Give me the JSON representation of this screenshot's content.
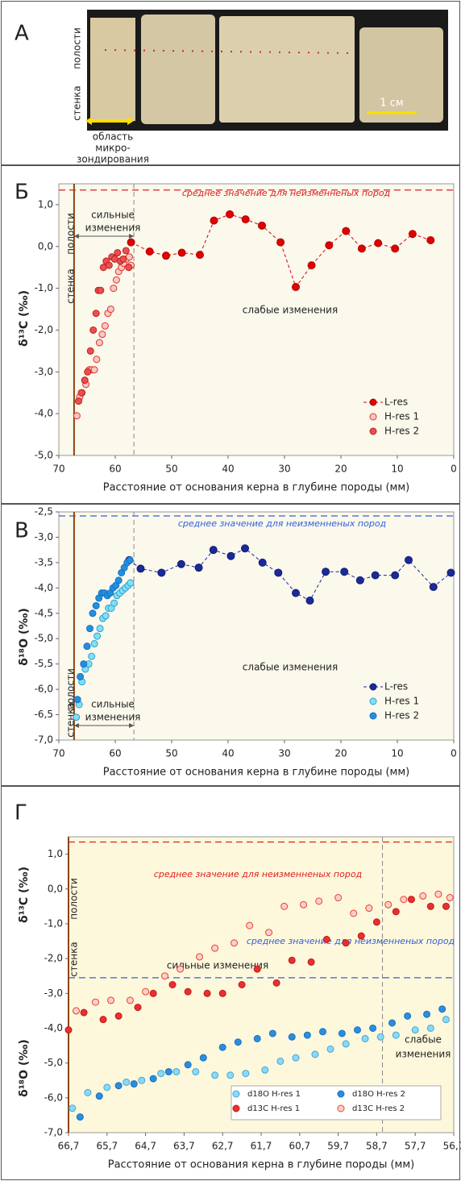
{
  "panel_a": {
    "label": "А",
    "cavity": "полости",
    "wall": "стенка",
    "zone": [
      "область",
      "микро-",
      "зондирования"
    ],
    "scale": "1 см"
  },
  "chart_data": [
    {
      "type": "scatter",
      "panel_label": "Б",
      "ylabel": [
        "δ¹³C (‰)"
      ],
      "xlabel": "Расстояние от основания керна в глубине породы (мм)",
      "xlim": [
        70,
        0
      ],
      "xticks": [
        70,
        60,
        50,
        40,
        30,
        20,
        10,
        0
      ],
      "ylim": [
        -5,
        1.5
      ],
      "yticks": [
        {
          "value": -5,
          "label": "-5,0"
        },
        {
          "value": -4,
          "label": "-4,0"
        },
        {
          "value": -3,
          "label": "-3,0"
        },
        {
          "value": -2,
          "label": "-2,0"
        },
        {
          "value": -1,
          "label": "-1,0"
        },
        {
          "value": 0,
          "label": "0,0"
        },
        {
          "value": 1,
          "label": "1,0"
        }
      ],
      "hlines": [
        {
          "value": 1.35,
          "color": "#e02020"
        }
      ],
      "vlines": [
        {
          "value": 56.7,
          "color": "#888888"
        },
        {
          "value": 67.3,
          "color": "#8b4513"
        }
      ],
      "annotations": [
        "среднее значение для неизменненых пород",
        "сильные",
        "изменения",
        "слабые изменения",
        "полости",
        "стенка"
      ],
      "legend": "lower right",
      "legend_columns": 1,
      "background": "#fbf8ec",
      "series": [
        {
          "name": "L-res",
          "color": "#e00000",
          "edgecolor": "#b00000",
          "line": "dashed",
          "x": [
            57.2,
            53.9,
            51,
            48.2,
            45,
            42.5,
            39.7,
            36.9,
            34,
            30.7,
            28,
            25.2,
            22.1,
            19.1,
            16.3,
            13.4,
            10.4,
            7.3,
            4.1
          ],
          "values": [
            0.1,
            -0.12,
            -0.22,
            -0.15,
            -0.2,
            0.62,
            0.77,
            0.65,
            0.5,
            0.1,
            -0.97,
            -0.45,
            0.03,
            0.37,
            -0.05,
            0.08,
            -0.05,
            0.3,
            0.15
          ]
        },
        {
          "name": "H-res 1",
          "color": "#f8c8c0",
          "edgecolor": "#e03030",
          "x": [
            66.8,
            66.3,
            65.9,
            65.2,
            64.6,
            64.2,
            63.7,
            63.3,
            62.8,
            62.3,
            61.8,
            61.3,
            60.8,
            60.3,
            59.8,
            59.4,
            58.9,
            58.5,
            58,
            57.5,
            57.2
          ],
          "values": [
            -4.05,
            -3.6,
            -3.5,
            -3.3,
            -2.95,
            -2.95,
            -2.95,
            -2.7,
            -2.3,
            -2.1,
            -1.9,
            -1.6,
            -1.5,
            -1,
            -0.8,
            -0.6,
            -0.5,
            -0.4,
            -0.3,
            -0.25,
            -0.45
          ]
        },
        {
          "name": "H-res 2",
          "color": "#e85050",
          "edgecolor": "#c02020",
          "x": [
            66.5,
            66,
            65.4,
            64.9,
            64.4,
            63.9,
            63.4,
            63,
            62.6,
            62.1,
            61.6,
            61.1,
            60.6,
            60.1,
            59.6,
            59.1,
            58.6,
            58.1,
            57.6
          ],
          "values": [
            -3.7,
            -3.5,
            -3.2,
            -3,
            -2.5,
            -2,
            -1.6,
            -1.05,
            -1.05,
            -0.5,
            -0.35,
            -0.45,
            -0.25,
            -0.3,
            -0.15,
            -0.35,
            -0.3,
            -0.1,
            -0.5
          ]
        }
      ]
    },
    {
      "type": "scatter",
      "panel_label": "В",
      "ylabel": [
        "δ¹⁸O (‰)"
      ],
      "xlabel": "Расстояние от основания керна в глубине породы (мм)",
      "xlim": [
        70,
        0
      ],
      "xticks": [
        70,
        60,
        50,
        40,
        30,
        20,
        10,
        0
      ],
      "ylim": [
        -7,
        -2.5
      ],
      "yticks": [
        {
          "value": -7,
          "label": "-7,0"
        },
        {
          "value": -6.5,
          "label": "-6,5"
        },
        {
          "value": -6,
          "label": "-6,0"
        },
        {
          "value": -5.5,
          "label": "-5,5"
        },
        {
          "value": -5,
          "label": "-5,0"
        },
        {
          "value": -4.5,
          "label": "-4,5"
        },
        {
          "value": -4,
          "label": "-4,0"
        },
        {
          "value": -3.5,
          "label": "-3,5"
        },
        {
          "value": -3,
          "label": "-3,0"
        },
        {
          "value": -2.5,
          "label": "-2,5"
        }
      ],
      "hlines": [
        {
          "value": -2.58,
          "color": "#3060e0"
        }
      ],
      "vlines": [
        {
          "value": 56.7,
          "color": "#888888"
        },
        {
          "value": 67.3,
          "color": "#8b4513"
        }
      ],
      "annotations": [
        "среднее значение для неизменненых пород",
        "слабые изменения",
        "полости",
        "стенка",
        "сильные",
        "изменения"
      ],
      "legend": "lower right",
      "legend_columns": 1,
      "background": "#fbf8ec",
      "series": [
        {
          "name": "L-res",
          "color": "#1a2a9a",
          "edgecolor": "#101c70",
          "line": "dashed",
          "x": [
            57.5,
            55.5,
            51.8,
            48.3,
            45.2,
            42.6,
            39.5,
            37,
            33.9,
            31.1,
            28,
            25.5,
            22.7,
            19.4,
            16.6,
            13.9,
            10.4,
            8,
            3.6,
            0.5
          ],
          "values": [
            -3.45,
            -3.62,
            -3.7,
            -3.53,
            -3.6,
            -3.25,
            -3.37,
            -3.22,
            -3.5,
            -3.7,
            -4.1,
            -4.25,
            -3.68,
            -3.68,
            -3.85,
            -3.75,
            -3.75,
            -3.45,
            -3.98,
            -3.7
          ]
        },
        {
          "name": "H-res 1",
          "color": "#7fe0f5",
          "edgecolor": "#30a0d0",
          "x": [
            66.9,
            66.4,
            65.9,
            65.3,
            64.7,
            64.2,
            63.7,
            63.2,
            62.7,
            62.2,
            61.7,
            61.2,
            60.7,
            60.2,
            59.7,
            59.2,
            58.7,
            58.2,
            57.7,
            57.3
          ],
          "values": [
            -6.55,
            -6.3,
            -5.85,
            -5.6,
            -5.5,
            -5.35,
            -5.1,
            -4.95,
            -4.8,
            -4.6,
            -4.55,
            -4.4,
            -4.4,
            -4.3,
            -4.15,
            -4.1,
            -4.05,
            -4,
            -3.95,
            -3.9
          ]
        },
        {
          "name": "H-res 2",
          "color": "#2090e0",
          "edgecolor": "#1870c0",
          "x": [
            66.7,
            66.2,
            65.6,
            65,
            64.5,
            64,
            63.4,
            62.9,
            62.4,
            61.9,
            61.4,
            60.9,
            60.4,
            59.9,
            59.4,
            58.9,
            58.4,
            57.9,
            57.4
          ],
          "values": [
            -6.2,
            -5.75,
            -5.5,
            -5.15,
            -4.8,
            -4.5,
            -4.35,
            -4.2,
            -4.1,
            -4.1,
            -4.15,
            -4.1,
            -4,
            -3.95,
            -3.85,
            -3.7,
            -3.6,
            -3.5,
            -3.45
          ]
        }
      ]
    },
    {
      "type": "scatter",
      "panel_label": "Г",
      "ylabel": [
        "δ¹³C (‰)",
        "δ¹⁸O (‰)"
      ],
      "xlabel": "Расстояние от основания керна в глубине породы (мм)",
      "xlim": [
        66.7,
        56.7
      ],
      "xticks": [
        {
          "value": 66.7,
          "label": "66,7"
        },
        {
          "value": 65.7,
          "label": "65,7"
        },
        {
          "value": 64.7,
          "label": "64,7"
        },
        {
          "value": 63.7,
          "label": "63,7"
        },
        {
          "value": 62.7,
          "label": "62,7"
        },
        {
          "value": 61.7,
          "label": "61,7"
        },
        {
          "value": 60.7,
          "label": "60,7"
        },
        {
          "value": 59.7,
          "label": "59,7"
        },
        {
          "value": 58.7,
          "label": "58,7"
        },
        {
          "value": 57.7,
          "label": "57,7"
        },
        {
          "value": 56.7,
          "label": "56,7"
        }
      ],
      "ylim": [
        -7,
        1.5
      ],
      "yticks": [
        {
          "value": -7,
          "label": "-7,0"
        },
        {
          "value": -6,
          "label": "-6,0"
        },
        {
          "value": -5,
          "label": "-5,0"
        },
        {
          "value": -4,
          "label": "-4,0"
        },
        {
          "value": -3,
          "label": "-3,0"
        },
        {
          "value": -2,
          "label": "-2,0"
        },
        {
          "value": -1,
          "label": "-1,0"
        },
        {
          "value": 0,
          "label": "0,0"
        },
        {
          "value": 1,
          "label": "1,0"
        }
      ],
      "hlines": [
        {
          "value": 1.35,
          "color": "#e02020"
        },
        {
          "value": -2.55,
          "color": "#3060e0"
        }
      ],
      "vlines": [
        {
          "value": 58.55,
          "color": "#888888"
        },
        {
          "value": 66.7,
          "color": "#8b4513"
        }
      ],
      "annotations": [
        "среднее значение для неизменненых пород",
        "среднее значение для неизменненых пород",
        "стенка",
        "полости",
        "сильные изменения",
        "слабые",
        "изменения"
      ],
      "legend": "lower right",
      "legend_columns": 2,
      "background": "#fdf8dc",
      "series": [
        {
          "name": "d18O H-res 1",
          "color": "#8cd8f5",
          "edgecolor": "#40a8d8",
          "x": [
            66.6,
            66.2,
            65.7,
            65.2,
            64.8,
            64.3,
            63.9,
            63.4,
            62.9,
            62.5,
            62.1,
            61.6,
            61.2,
            60.8,
            60.3,
            59.9,
            59.5,
            59,
            58.6,
            58.2,
            57.7,
            57.3,
            56.9
          ],
          "values": [
            -6.3,
            -5.85,
            -5.7,
            -5.55,
            -5.5,
            -5.3,
            -5.25,
            -5.25,
            -5.35,
            -5.35,
            -5.3,
            -5.2,
            -4.95,
            -4.85,
            -4.75,
            -4.6,
            -4.45,
            -4.3,
            -4.25,
            -4.2,
            -4.05,
            -4,
            -3.75
          ]
        },
        {
          "name": "d18O H-res 2",
          "color": "#2a8ee0",
          "edgecolor": "#1a70c0",
          "x": [
            66.4,
            65.9,
            65.4,
            65,
            64.5,
            64.1,
            63.6,
            63.2,
            62.7,
            62.3,
            61.8,
            61.4,
            60.9,
            60.5,
            60.1,
            59.6,
            59.2,
            58.8,
            58.3,
            57.9,
            57.4,
            57
          ],
          "values": [
            -6.55,
            -5.95,
            -5.65,
            -5.6,
            -5.45,
            -5.25,
            -5.05,
            -4.85,
            -4.55,
            -4.4,
            -4.3,
            -4.15,
            -4.25,
            -4.2,
            -4.1,
            -4.15,
            -4.05,
            -4,
            -3.85,
            -3.65,
            -3.6,
            -3.45
          ]
        },
        {
          "name": "d13C H-res 1",
          "color": "#e83030",
          "edgecolor": "#c01818",
          "x": [
            66.7,
            66.3,
            65.8,
            65.4,
            64.9,
            64.5,
            64,
            63.6,
            63.1,
            62.7,
            62.2,
            61.8,
            61.3,
            60.9,
            60.4,
            60,
            59.5,
            59.1,
            58.7,
            58.2,
            57.8,
            57.3,
            56.9
          ],
          "values": [
            -4.05,
            -3.55,
            -3.75,
            -3.65,
            -3.4,
            -3,
            -2.75,
            -2.95,
            -3,
            -3,
            -2.75,
            -2.3,
            -2.7,
            -2.05,
            -2.1,
            -1.45,
            -1.55,
            -1.35,
            -0.95,
            -0.65,
            -0.3,
            -0.5,
            -0.5
          ]
        },
        {
          "name": "d13C H-res 2",
          "color": "#fbd0c8",
          "edgecolor": "#e84030",
          "x": [
            66.5,
            66,
            65.6,
            65.1,
            64.7,
            64.2,
            63.8,
            63.3,
            62.9,
            62.4,
            62,
            61.5,
            61.1,
            60.6,
            60.2,
            59.7,
            59.3,
            58.9,
            58.4,
            58,
            57.5,
            57.1,
            56.8
          ],
          "values": [
            -3.5,
            -3.25,
            -3.2,
            -3.2,
            -2.95,
            -2.5,
            -2.3,
            -1.95,
            -1.7,
            -1.55,
            -1.05,
            -1.25,
            -0.5,
            -0.45,
            -0.35,
            -0.25,
            -0.7,
            -0.55,
            -0.45,
            -0.3,
            -0.2,
            -0.15,
            -0.25
          ]
        }
      ]
    }
  ]
}
